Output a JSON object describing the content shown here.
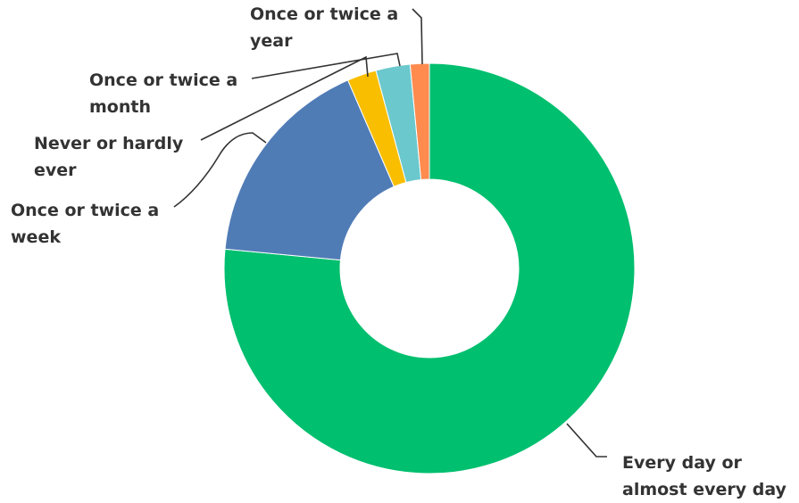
{
  "chart_data": {
    "type": "pie",
    "donut": true,
    "title": "",
    "unit": "%",
    "slices": [
      {
        "label": "Every day or almost every day",
        "value": 76.5,
        "color": "#00BF6F",
        "key": "every-day"
      },
      {
        "label": "Once or twice a week",
        "value": 17.0,
        "color": "#507CB6",
        "key": "week"
      },
      {
        "label": "Never or hardly ever",
        "value": 2.3,
        "color": "#F9BE00",
        "key": "never"
      },
      {
        "label": "Once or twice a month",
        "value": 2.7,
        "color": "#6BC8CD",
        "key": "month"
      },
      {
        "label": "Once or twice a year",
        "value": 1.5,
        "color": "#FF8B4F",
        "key": "year"
      }
    ],
    "label_lines": {
      "every-day": [
        "Every day or",
        "almost every day"
      ],
      "week": [
        "Once or twice a",
        "week"
      ],
      "never": [
        "Never or hardly",
        "ever"
      ],
      "month": [
        "Once or twice a",
        "month"
      ],
      "year": [
        "Once or twice a",
        "year"
      ]
    }
  }
}
